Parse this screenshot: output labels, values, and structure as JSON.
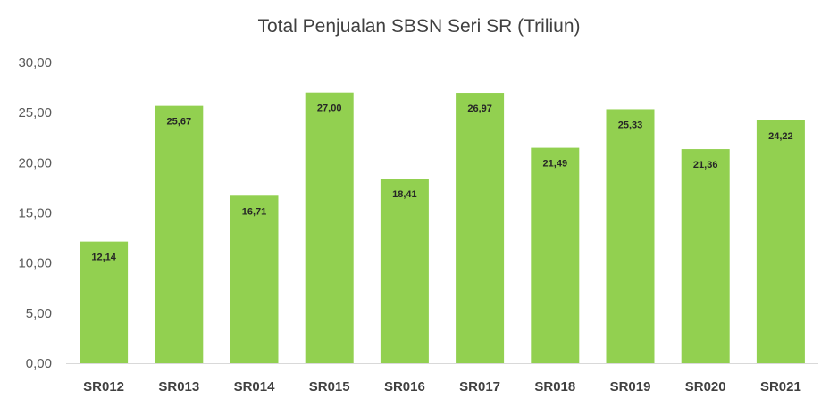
{
  "chart_data": {
    "type": "bar",
    "title": "Total Penjualan SBSN Seri SR (Triliun)",
    "xlabel": "",
    "ylabel": "",
    "categories": [
      "SR012",
      "SR013",
      "SR014",
      "SR015",
      "SR016",
      "SR017",
      "SR018",
      "SR019",
      "SR020",
      "SR021"
    ],
    "values": [
      12.14,
      25.67,
      16.71,
      27.0,
      18.41,
      26.97,
      21.49,
      25.33,
      21.36,
      24.22
    ],
    "value_labels": [
      "12,14",
      "25,67",
      "16,71",
      "27,00",
      "18,41",
      "26,97",
      "21,49",
      "25,33",
      "21,36",
      "24,22"
    ],
    "ylim": [
      0,
      30
    ],
    "yticks": [
      0,
      5,
      10,
      15,
      20,
      25,
      30
    ],
    "ytick_labels": [
      "0,00",
      "5,00",
      "10,00",
      "15,00",
      "20,00",
      "25,00",
      "30,00"
    ],
    "grid": false,
    "legend": "none",
    "bar_color": "#92d050",
    "axis_color": "#d9d9d9"
  }
}
